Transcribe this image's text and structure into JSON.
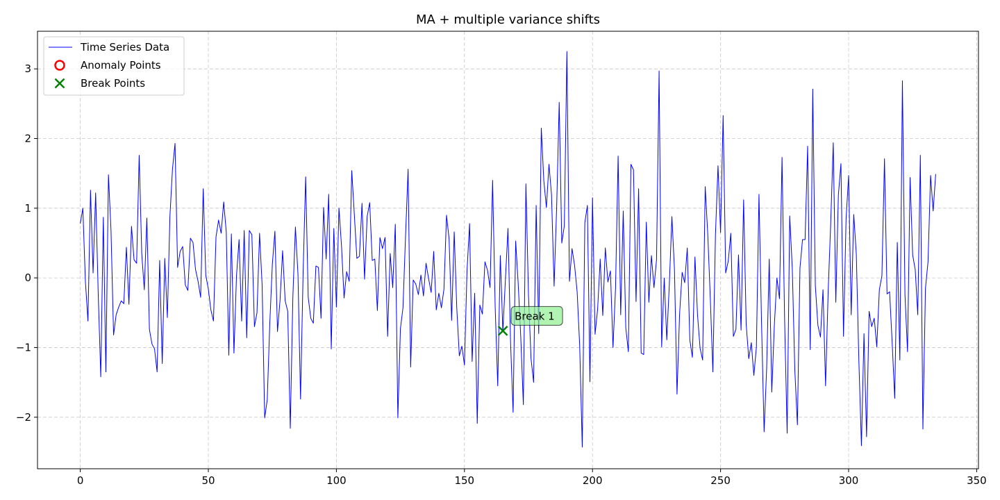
{
  "chart_data": {
    "type": "line",
    "title": "MA + multiple variance shifts",
    "xlabel": "",
    "ylabel": "",
    "xlim": [
      -16.7,
      350.7
    ],
    "ylim": [
      -2.74,
      3.54
    ],
    "xticks": [
      0,
      50,
      100,
      150,
      200,
      250,
      300,
      350
    ],
    "yticks": [
      -2,
      -1,
      0,
      1,
      2,
      3
    ],
    "ytick_labels": [
      "−2",
      "−1",
      "0",
      "1",
      "2",
      "3"
    ],
    "grid": true,
    "legend_position": "top-left",
    "legend": [
      {
        "label": "Time Series Data",
        "marker": "line",
        "color": "#0000ff"
      },
      {
        "label": "Anomaly Points",
        "marker": "circle",
        "color": "#ff0000"
      },
      {
        "label": "Break Points",
        "marker": "x",
        "color": "#008000"
      }
    ],
    "series": [
      {
        "name": "Time Series Data",
        "color": "#0000ff",
        "x_start": 0,
        "values": [
          0.78,
          1.0,
          -0.05,
          -0.62,
          1.26,
          0.07,
          1.22,
          -0.22,
          -1.42,
          0.87,
          -1.35,
          1.48,
          0.68,
          -0.82,
          -0.53,
          -0.42,
          -0.33,
          -0.37,
          0.44,
          -0.38,
          0.74,
          0.26,
          0.21,
          1.76,
          0.35,
          -0.17,
          0.86,
          -0.74,
          -0.95,
          -1.02,
          -1.35,
          0.25,
          -1.23,
          0.28,
          -0.57,
          0.88,
          1.56,
          1.93,
          0.15,
          0.38,
          0.45,
          -0.1,
          -0.18,
          0.57,
          0.51,
          0.12,
          -0.05,
          -0.28,
          1.28,
          0.04,
          -0.16,
          -0.46,
          -0.62,
          0.59,
          0.83,
          0.64,
          1.09,
          0.66,
          -1.11,
          0.63,
          -1.08,
          0.03,
          0.55,
          -0.62,
          0.68,
          -0.86,
          0.68,
          0.62,
          -0.7,
          -0.5,
          0.64,
          -0.1,
          -2.01,
          -1.75,
          -0.65,
          0.2,
          0.67,
          -0.77,
          -0.32,
          0.39,
          -0.33,
          -0.48,
          -2.16,
          -0.28,
          0.73,
          0.05,
          -1.74,
          0.06,
          1.45,
          -0.28,
          -0.58,
          -0.65,
          0.17,
          0.15,
          -0.58,
          1.01,
          0.27,
          1.2,
          -1.02,
          0.71,
          -0.42,
          1.0,
          0.46,
          -0.29,
          0.09,
          -0.05,
          1.54,
          0.91,
          0.28,
          0.31,
          1.07,
          -0.02,
          0.88,
          1.08,
          0.25,
          0.27,
          -0.47,
          0.58,
          0.42,
          0.58,
          -0.84,
          0.35,
          -0.14,
          0.77,
          -2.01,
          -0.73,
          -0.43,
          0.6,
          1.56,
          -1.28,
          -0.03,
          -0.09,
          -0.24,
          0.04,
          -0.26,
          0.21,
          -0.01,
          -0.21,
          0.38,
          -0.46,
          -0.22,
          -0.43,
          -0.16,
          0.9,
          0.56,
          -0.61,
          0.66,
          -0.43,
          -1.12,
          -0.98,
          -1.25,
          0.1,
          0.78,
          -1.2,
          -0.22,
          -2.09,
          -0.39,
          -0.52,
          0.23,
          0.11,
          -0.14,
          1.4,
          -0.42,
          -1.55,
          0.32,
          -0.77,
          -0.02,
          0.71,
          -0.92,
          -1.93,
          0.53,
          -0.09,
          -0.86,
          -1.82,
          1.35,
          -0.24,
          -1.16,
          -1.5,
          1.04,
          -0.8,
          2.15,
          1.39,
          1.01,
          1.63,
          1.19,
          -0.12,
          1.01,
          2.52,
          0.5,
          0.75,
          3.25,
          -0.05,
          0.42,
          0.18,
          -0.2,
          -0.98,
          -2.43,
          0.79,
          1.04,
          -1.49,
          1.15,
          -0.81,
          -0.45,
          0.27,
          -0.54,
          0.43,
          -0.06,
          0.1,
          -1.0,
          -0.14,
          1.75,
          -0.53,
          0.96,
          -0.72,
          -1.06,
          1.63,
          1.55,
          -0.34,
          1.28,
          -1.08,
          -1.1,
          0.8,
          -0.35,
          0.32,
          -0.14,
          0.26,
          2.97,
          -0.99,
          0.0,
          -0.89,
          -0.09,
          0.88,
          0.12,
          -1.67,
          -0.52,
          0.08,
          -0.07,
          0.43,
          -0.89,
          -1.14,
          0.3,
          -0.53,
          -1.01,
          -1.18,
          1.31,
          0.63,
          -0.3,
          -1.35,
          0.61,
          1.61,
          0.65,
          2.33,
          0.07,
          0.24,
          0.64,
          -0.84,
          -0.74,
          0.33,
          -0.75,
          1.12,
          -0.66,
          -1.16,
          -0.93,
          -1.4,
          -0.99,
          1.2,
          -0.65,
          -2.21,
          -1.29,
          0.27,
          -1.64,
          -0.68,
          0.0,
          -0.3,
          1.73,
          -0.59,
          -2.23,
          0.89,
          0.14,
          -1.33,
          -2.11,
          0.14,
          0.55,
          0.55,
          1.89,
          -1.03,
          2.71,
          -0.11,
          -0.68,
          -0.85,
          -0.17,
          -1.55,
          -0.21,
          0.78,
          1.94,
          -0.35,
          1.19,
          1.64,
          -0.84,
          0.84,
          1.47,
          -0.53,
          0.91,
          0.34,
          -1.19,
          -2.41,
          -0.8,
          -2.28,
          -0.48,
          -0.7,
          -0.58,
          -0.99,
          -0.17,
          0.03,
          1.71,
          -0.23,
          -0.2,
          -0.93,
          -1.73,
          0.51,
          -1.18,
          2.83,
          -0.24,
          -1.06,
          1.44,
          0.33,
          0.12,
          -0.53,
          1.76,
          -2.17,
          -0.15,
          0.23,
          1.47,
          0.96,
          1.49
        ]
      }
    ],
    "anomaly_points": [],
    "break_points": [
      {
        "x": 165,
        "y": -0.76,
        "label": "Break 1"
      }
    ]
  }
}
